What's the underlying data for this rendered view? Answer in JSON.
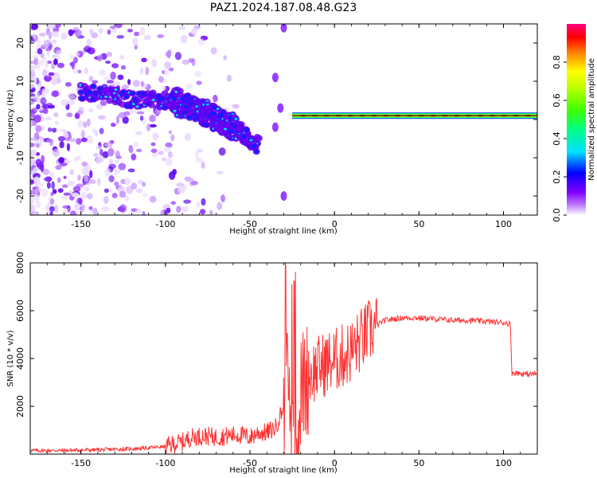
{
  "figure_title": "PAZ1.2024.187.08.48.G23",
  "chart_data": [
    {
      "type": "heatmap",
      "title": "",
      "xlabel": "Height of straight line (km)",
      "ylabel": "Frequency (Hz)",
      "xlim": [
        -180,
        120
      ],
      "ylim": [
        -25,
        25
      ],
      "xticks": [
        -150,
        -100,
        -50,
        0,
        50,
        100
      ],
      "yticks": [
        -20,
        -10,
        0,
        10,
        20
      ],
      "colorbar": {
        "label": "Normalized spectral amplitude",
        "range": [
          0.0,
          1.0
        ],
        "ticks": [
          0.0,
          0.2,
          0.4,
          0.6,
          0.8
        ]
      },
      "features": {
        "ridge_points": [
          [
            -150,
            7
          ],
          [
            -140,
            7
          ],
          [
            -130,
            6
          ],
          [
            -120,
            5
          ],
          [
            -110,
            5
          ],
          [
            -100,
            5
          ],
          [
            -95,
            6
          ],
          [
            -90,
            5
          ],
          [
            -85,
            4
          ],
          [
            -80,
            3
          ],
          [
            -75,
            3
          ],
          [
            -70,
            1
          ],
          [
            -65,
            0
          ],
          [
            -60,
            -1
          ],
          [
            -55,
            -3
          ],
          [
            -50,
            -5
          ],
          [
            -45,
            -7
          ]
        ],
        "secondary_ridge_points": [
          [
            -95,
            2
          ],
          [
            -85,
            1
          ],
          [
            -75,
            -1
          ],
          [
            -65,
            -3
          ],
          [
            -55,
            -5
          ],
          [
            -45,
            -7
          ]
        ],
        "steady_line_hz": 1.0,
        "steady_line_start_km": -25
      }
    },
    {
      "type": "line",
      "title": "",
      "xlabel": "Height of straight line (km)",
      "ylabel": "SNR (10 * v/v)",
      "xlim": [
        -180,
        120
      ],
      "ylim": [
        0,
        8000
      ],
      "xticks": [
        -150,
        -100,
        -50,
        0,
        50,
        100
      ],
      "yticks": [
        2000,
        4000,
        6000,
        8000
      ],
      "grid": false,
      "series": [
        {
          "color": "#ff3333",
          "x": [
            -180,
            -160,
            -140,
            -120,
            -110,
            -100,
            -95,
            -90,
            -85,
            -80,
            -75,
            -70,
            -65,
            -60,
            -55,
            -50,
            -45,
            -40,
            -35,
            -30,
            -28,
            -26,
            -25,
            -24,
            -22,
            -20,
            -18,
            -15,
            -10,
            -5,
            0,
            5,
            10,
            15,
            20,
            25,
            30,
            40,
            50,
            60,
            70,
            80,
            90,
            100,
            104,
            105,
            108,
            112,
            120
          ],
          "y": [
            150,
            150,
            180,
            220,
            260,
            320,
            420,
            500,
            700,
            750,
            750,
            700,
            750,
            800,
            800,
            700,
            900,
            900,
            1100,
            2000,
            3000,
            2000,
            900,
            500,
            300,
            2500,
            3000,
            3300,
            3600,
            3800,
            3900,
            4100,
            4300,
            4700,
            5100,
            5400,
            5600,
            5700,
            5700,
            5650,
            5600,
            5600,
            5550,
            5500,
            5450,
            3400,
            3400,
            3350,
            3350
          ]
        }
      ]
    }
  ]
}
